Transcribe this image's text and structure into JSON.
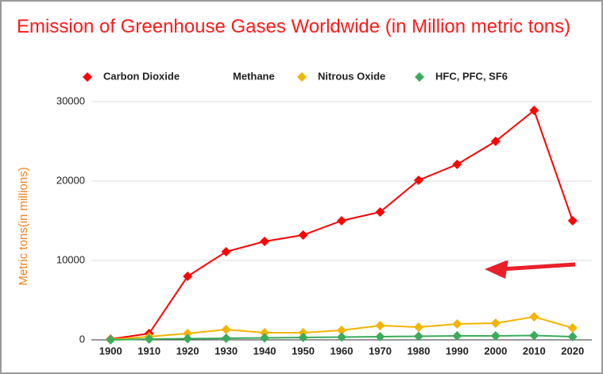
{
  "chart_data": {
    "type": "line",
    "title": "Emission of Greenhouse Gases Worldwide (in Million metric tons)",
    "y_label": "Metric tons(in millions)",
    "x": [
      1900,
      1910,
      1920,
      1930,
      1940,
      1950,
      1960,
      1970,
      1980,
      1990,
      2000,
      2010,
      2020
    ],
    "series": [
      {
        "name": "Carbon Dioxide",
        "color": "#ff0000",
        "values": [
          100,
          800,
          8000,
          11100,
          12400,
          13200,
          15000,
          16100,
          20100,
          22100,
          25000,
          28900,
          15000
        ]
      },
      {
        "name": "Methane",
        "color": "#ffffff",
        "values": [
          null,
          null,
          null,
          null,
          null,
          null,
          null,
          null,
          null,
          null,
          null,
          null,
          null
        ]
      },
      {
        "name": "Nitrous Oxide",
        "color": "#f4b400",
        "values": [
          50,
          400,
          800,
          1300,
          900,
          900,
          1200,
          1800,
          1600,
          2000,
          2100,
          2900,
          1500
        ]
      },
      {
        "name": "HFC, PFC, SF6",
        "color": "#3cab5a",
        "values": [
          0,
          100,
          150,
          200,
          250,
          300,
          350,
          400,
          450,
          500,
          500,
          550,
          400
        ]
      }
    ],
    "xlim": [
      1895,
      2025
    ],
    "xticks": [
      1900,
      1910,
      1920,
      1930,
      1940,
      1950,
      1960,
      1970,
      1980,
      1990,
      2000,
      2010,
      2020
    ],
    "ylim": [
      0,
      30000
    ],
    "yticks": [
      0,
      10000,
      20000,
      30000
    ],
    "grid": true
  }
}
